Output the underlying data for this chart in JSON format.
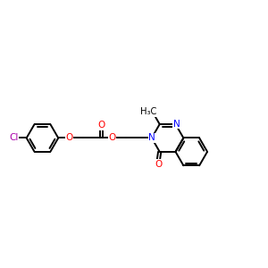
{
  "background_color": "#ffffff",
  "figsize": [
    3.0,
    3.0
  ],
  "dpi": 100,
  "bond_color": "#000000",
  "bond_width": 1.4,
  "atom_colors": {
    "O": "#ff0000",
    "N": "#0000ff",
    "Cl": "#aa00aa",
    "C": "#000000"
  },
  "xlim": [
    0,
    10
  ],
  "ylim": [
    2,
    8
  ]
}
